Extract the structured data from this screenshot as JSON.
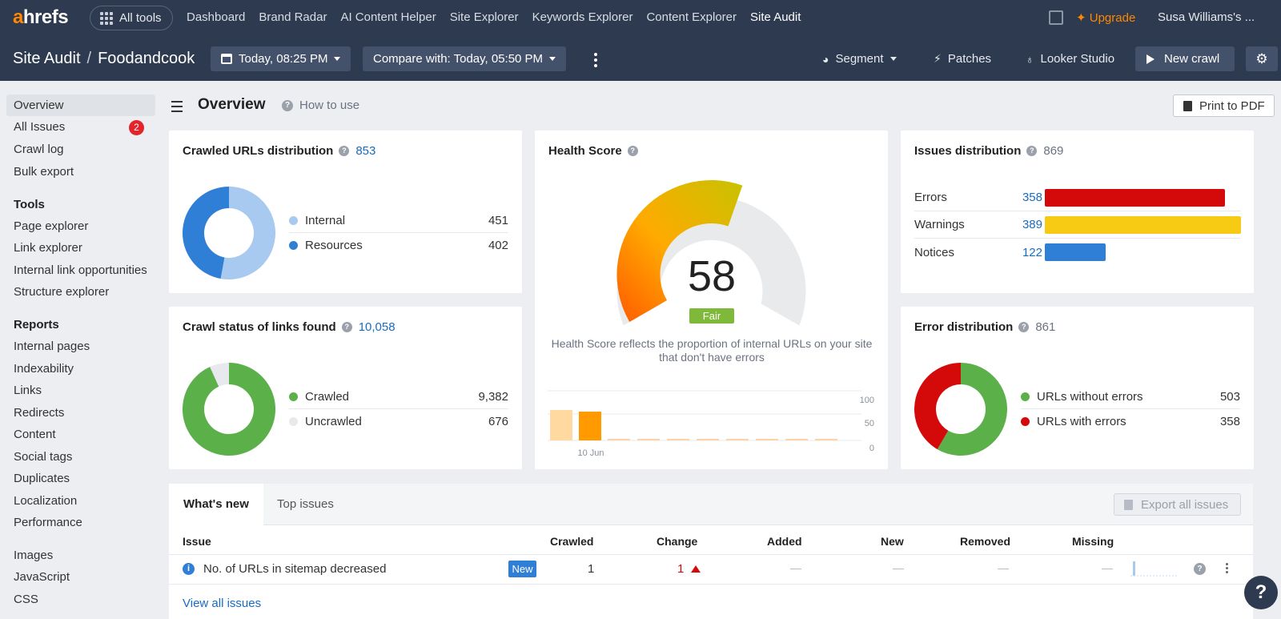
{
  "topnav": {
    "logo_accent": "a",
    "logo_rest": "hrefs",
    "all_tools": "All tools",
    "links": [
      "Dashboard",
      "Brand Radar",
      "AI Content Helper",
      "Site Explorer",
      "Keywords Explorer",
      "Content Explorer",
      "Site Audit"
    ],
    "active_link": "Site Audit",
    "upgrade": "Upgrade",
    "user": "Susa Williams's ..."
  },
  "subheader": {
    "section": "Site Audit",
    "separator": "/",
    "project": "Foodandcook",
    "date_btn": "Today, 08:25 PM",
    "compare_btn": "Compare with: Today, 05:50 PM",
    "segment": "Segment",
    "patches": "Patches",
    "looker": "Looker Studio",
    "new_crawl": "New crawl"
  },
  "sidebar": {
    "items_top": [
      "Overview",
      "All Issues",
      "Crawl log",
      "Bulk export"
    ],
    "all_issues_badge": "2",
    "tools_head": "Tools",
    "tools": [
      "Page explorer",
      "Link explorer",
      "Internal link opportunities",
      "Structure explorer"
    ],
    "reports_head": "Reports",
    "reports": [
      "Internal pages",
      "Indexability",
      "Links",
      "Redirects",
      "Content",
      "Social tags",
      "Duplicates",
      "Localization",
      "Performance"
    ],
    "resources": [
      "Images",
      "JavaScript",
      "CSS"
    ]
  },
  "main": {
    "title": "Overview",
    "how_to_use": "How to use",
    "print_pdf": "Print to PDF"
  },
  "crawled_urls": {
    "title": "Crawled URLs distribution",
    "total": "853",
    "rows": [
      {
        "label": "Internal",
        "value": "451",
        "color": "#a8c9f0"
      },
      {
        "label": "Resources",
        "value": "402",
        "color": "#2f7fd6"
      }
    ]
  },
  "crawl_status": {
    "title": "Crawl status of links found",
    "total": "10,058",
    "rows": [
      {
        "label": "Crawled",
        "value": "9,382",
        "color": "#5bb04a"
      },
      {
        "label": "Uncrawled",
        "value": "676",
        "color": "#e7e9ec"
      }
    ]
  },
  "health": {
    "title": "Health Score",
    "score": "58",
    "rating": "Fair",
    "score_value": 58,
    "description": "Health Score reflects the proportion of internal URLs on your site that don't have errors",
    "y_ticks": [
      "100",
      "50",
      "0"
    ],
    "x_label": "10 Jun"
  },
  "issues_dist": {
    "title": "Issues distribution",
    "total": "869",
    "rows": [
      {
        "label": "Errors",
        "value": "358",
        "color": "#d40a0a",
        "fraction": 0.92
      },
      {
        "label": "Warnings",
        "value": "389",
        "color": "#f7cb13",
        "fraction": 1.0
      },
      {
        "label": "Notices",
        "value": "122",
        "color": "#2f7fd6",
        "fraction": 0.31
      }
    ]
  },
  "error_dist": {
    "title": "Error distribution",
    "total": "861",
    "rows": [
      {
        "label": "URLs without errors",
        "value": "503",
        "color": "#5bb04a"
      },
      {
        "label": "URLs with errors",
        "value": "358",
        "color": "#d40a0a"
      }
    ]
  },
  "chart_data": [
    {
      "type": "pie",
      "title": "Crawled URLs distribution",
      "categories": [
        "Internal",
        "Resources"
      ],
      "values": [
        451,
        402
      ]
    },
    {
      "type": "pie",
      "title": "Crawl status of links found",
      "categories": [
        "Crawled",
        "Uncrawled"
      ],
      "values": [
        9382,
        676
      ]
    },
    {
      "type": "bar",
      "title": "Health Score",
      "x": [
        "10 Jun"
      ],
      "values": [
        58
      ],
      "ylim": [
        0,
        100
      ]
    },
    {
      "type": "bar",
      "title": "Issues distribution",
      "categories": [
        "Errors",
        "Warnings",
        "Notices"
      ],
      "values": [
        358,
        389,
        122
      ]
    },
    {
      "type": "pie",
      "title": "Error distribution",
      "categories": [
        "URLs without errors",
        "URLs with errors"
      ],
      "values": [
        503,
        358
      ]
    }
  ],
  "table": {
    "tab_whats_new": "What's new",
    "tab_top_issues": "Top issues",
    "export": "Export all issues",
    "headers": [
      "Issue",
      "Crawled",
      "Change",
      "Added",
      "New",
      "Removed",
      "Missing"
    ],
    "row": {
      "issue": "No. of URLs in sitemap decreased",
      "tag": "New",
      "crawled": "1",
      "change": "1"
    },
    "view_all": "View all issues"
  },
  "help": "?"
}
